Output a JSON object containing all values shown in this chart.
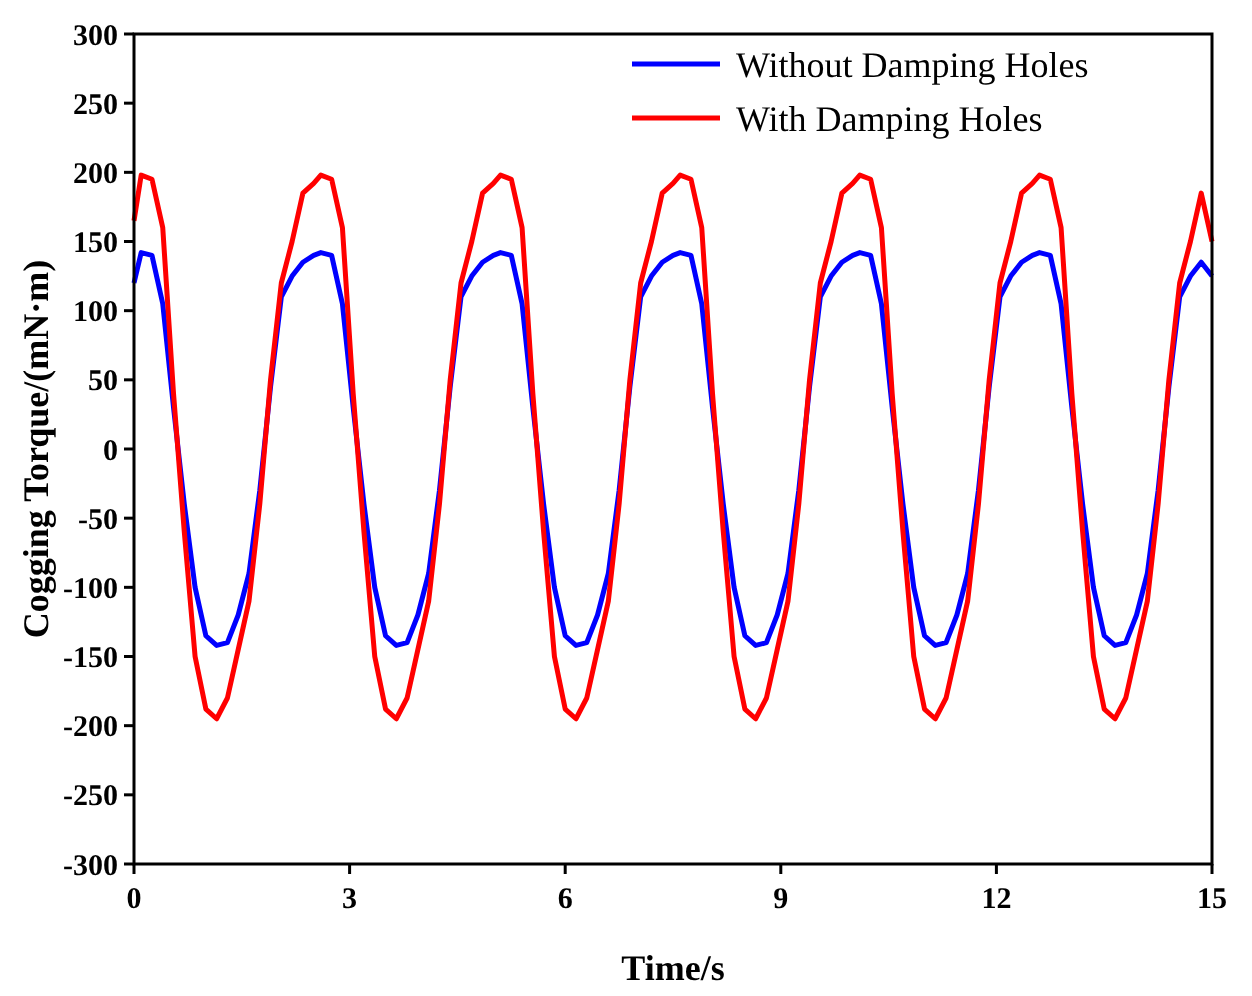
{
  "chart_data": {
    "type": "line",
    "xlabel": "Time/s",
    "ylabel": "Cogging Torque/(mN·m)",
    "x": [
      0,
      0.1,
      0.25,
      0.4,
      0.55,
      0.7,
      0.85,
      1,
      1.15,
      1.3,
      1.45,
      1.6,
      1.75,
      1.9,
      2.05,
      2.2,
      2.35,
      2.5,
      2.6,
      2.75,
      2.9,
      3.05,
      3.2,
      3.35,
      3.5,
      3.65,
      3.8,
      3.95,
      4.1,
      4.25,
      4.4,
      4.55,
      4.7,
      4.85,
      5,
      5.1,
      5.25,
      5.4,
      5.55,
      5.7,
      5.85,
      6,
      6.15,
      6.3,
      6.45,
      6.6,
      6.75,
      6.9,
      7.05,
      7.2,
      7.35,
      7.5,
      7.6,
      7.75,
      7.9,
      8.05,
      8.2,
      8.35,
      8.5,
      8.65,
      8.8,
      8.95,
      9.1,
      9.25,
      9.4,
      9.55,
      9.7,
      9.85,
      10,
      10.1,
      10.25,
      10.4,
      10.55,
      10.7,
      10.85,
      11,
      11.15,
      11.3,
      11.45,
      11.6,
      11.75,
      11.9,
      12.05,
      12.2,
      12.35,
      12.5,
      12.6,
      12.75,
      12.9,
      13.05,
      13.2,
      13.35,
      13.5,
      13.65,
      13.8,
      13.95,
      14.1,
      14.25,
      14.4,
      14.55,
      14.7,
      14.85,
      15
    ],
    "series": [
      {
        "name": "Without Damping Holes",
        "color": "#0000ff",
        "values": [
          120,
          142,
          140,
          105,
          30,
          -40,
          -100,
          -135,
          -142,
          -140,
          -120,
          -90,
          -30,
          45,
          110,
          125,
          135,
          140,
          142,
          140,
          105,
          30,
          -40,
          -100,
          -135,
          -142,
          -140,
          -120,
          -90,
          -30,
          45,
          110,
          125,
          135,
          140,
          142,
          140,
          105,
          30,
          -40,
          -100,
          -135,
          -142,
          -140,
          -120,
          -90,
          -30,
          45,
          110,
          125,
          135,
          140,
          142,
          140,
          105,
          30,
          -40,
          -100,
          -135,
          -142,
          -140,
          -120,
          -90,
          -30,
          45,
          110,
          125,
          135,
          140,
          142,
          140,
          105,
          30,
          -40,
          -100,
          -135,
          -142,
          -140,
          -120,
          -90,
          -30,
          45,
          110,
          125,
          135,
          140,
          142,
          140,
          105,
          30,
          -40,
          -100,
          -135,
          -142,
          -140,
          -120,
          -90,
          -30,
          45,
          110,
          125,
          135,
          125
        ]
      },
      {
        "name": "With Damping Holes",
        "color": "#ff0000",
        "values": [
          165,
          198,
          195,
          160,
          40,
          -60,
          -150,
          -188,
          -195,
          -180,
          -145,
          -110,
          -40,
          50,
          120,
          150,
          185,
          192,
          198,
          195,
          160,
          40,
          -60,
          -150,
          -188,
          -195,
          -180,
          -145,
          -110,
          -40,
          50,
          120,
          150,
          185,
          192,
          198,
          195,
          160,
          40,
          -60,
          -150,
          -188,
          -195,
          -180,
          -145,
          -110,
          -40,
          50,
          120,
          150,
          185,
          192,
          198,
          195,
          160,
          40,
          -60,
          -150,
          -188,
          -195,
          -180,
          -145,
          -110,
          -40,
          50,
          120,
          150,
          185,
          192,
          198,
          195,
          160,
          40,
          -60,
          -150,
          -188,
          -195,
          -180,
          -145,
          -110,
          -40,
          50,
          120,
          150,
          185,
          192,
          198,
          195,
          160,
          40,
          -60,
          -150,
          -188,
          -195,
          -180,
          -145,
          -110,
          -40,
          50,
          120,
          150,
          185,
          150
        ]
      }
    ],
    "xlim": [
      0,
      15
    ],
    "xticks": [
      0,
      3,
      6,
      9,
      12,
      15
    ],
    "ylim": [
      -300,
      300
    ],
    "yticks": [
      -300,
      -250,
      -200,
      -150,
      -100,
      -50,
      0,
      50,
      100,
      150,
      200,
      250,
      300
    ],
    "legend": "top right",
    "grid": false,
    "marker": "none",
    "line_style": "solid"
  }
}
